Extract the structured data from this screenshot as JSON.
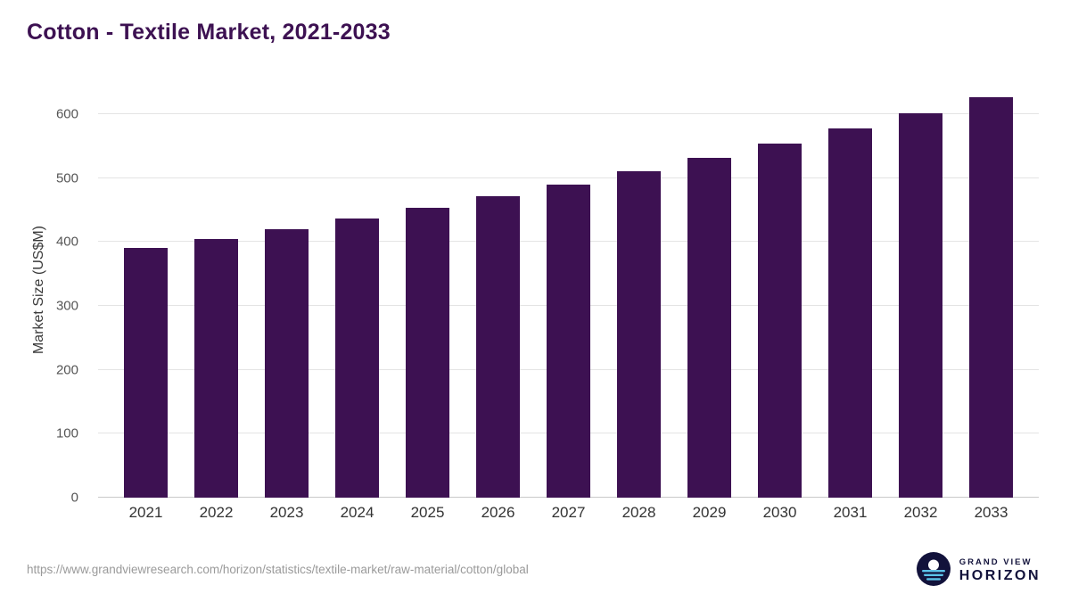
{
  "title": "Cotton - Textile Market, 2021-2033",
  "colors": {
    "bar": "#3D1152",
    "title": "#3D1152",
    "grid": "#e4e4e4",
    "axis": "#c9c9c9",
    "tick_text": "#555555",
    "logo_navy": "#12123B",
    "logo_blue": "#5BC2E9"
  },
  "chart_data": {
    "type": "bar",
    "title": "Cotton - Textile Market, 2021-2033",
    "categories": [
      "2021",
      "2022",
      "2023",
      "2024",
      "2025",
      "2026",
      "2027",
      "2028",
      "2029",
      "2030",
      "2031",
      "2032",
      "2033"
    ],
    "values": [
      390,
      405,
      420,
      436,
      454,
      471,
      490,
      511,
      531,
      554,
      577,
      601,
      627
    ],
    "xlabel": "",
    "ylabel": "Market Size (US$M)",
    "ylim": [
      0,
      650
    ],
    "yticks": [
      0,
      100,
      200,
      300,
      400,
      500,
      600
    ],
    "grid": "horizontal",
    "legend": "none",
    "bar_color": "#3D1152"
  },
  "footer": {
    "source_url": "https://www.grandviewresearch.com/horizon/statistics/textile-market/raw-material/cotton/global",
    "logo": {
      "icon": "horizon-sun-icon",
      "line1": "GRAND VIEW",
      "line2": "HORIZON"
    }
  }
}
